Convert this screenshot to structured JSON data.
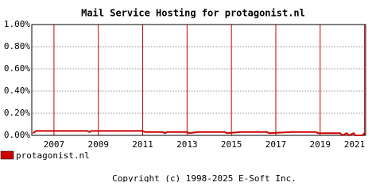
{
  "chart_data": {
    "type": "line",
    "title": "Mail Service Hosting for protagonist.nl",
    "footer": "Copyright (c) 1998-2025 E-Soft Inc.",
    "xlim": [
      2006,
      2021.05
    ],
    "xticks": [
      2007,
      2009,
      2011,
      2013,
      2015,
      2017,
      2019,
      2021
    ],
    "ylim": [
      0,
      1
    ],
    "yticks": [
      {
        "value": 0,
        "label": "0.00%"
      },
      {
        "value": 0.2,
        "label": "0.20%"
      },
      {
        "value": 0.4,
        "label": "0.40%"
      },
      {
        "value": 0.6,
        "label": "0.60%"
      },
      {
        "value": 0.8,
        "label": "0.80%"
      },
      {
        "value": 1,
        "label": "1.00%"
      }
    ],
    "grid": true,
    "series": [
      {
        "name": "protagonist.nl",
        "color": "#cc0000",
        "x": [
          2006.05,
          2006.2,
          2008.5,
          2008.6,
          2008.7,
          2011.0,
          2011.1,
          2011.9,
          2012.0,
          2012.1,
          2013.0,
          2013.1,
          2013.5,
          2014.7,
          2014.8,
          2015.4,
          2016.6,
          2016.7,
          2017.7,
          2018.8,
          2018.9,
          2019.9,
          2020.0,
          2020.2,
          2020.3,
          2020.5,
          2020.6,
          2020.9,
          2021.0
        ],
        "values": [
          0.02,
          0.04,
          0.04,
          0.03,
          0.04,
          0.04,
          0.03,
          0.03,
          0.02,
          0.03,
          0.03,
          0.02,
          0.03,
          0.03,
          0.02,
          0.03,
          0.03,
          0.02,
          0.03,
          0.03,
          0.02,
          0.02,
          0,
          0.02,
          0,
          0.02,
          0,
          0,
          0.02
        ]
      }
    ]
  }
}
